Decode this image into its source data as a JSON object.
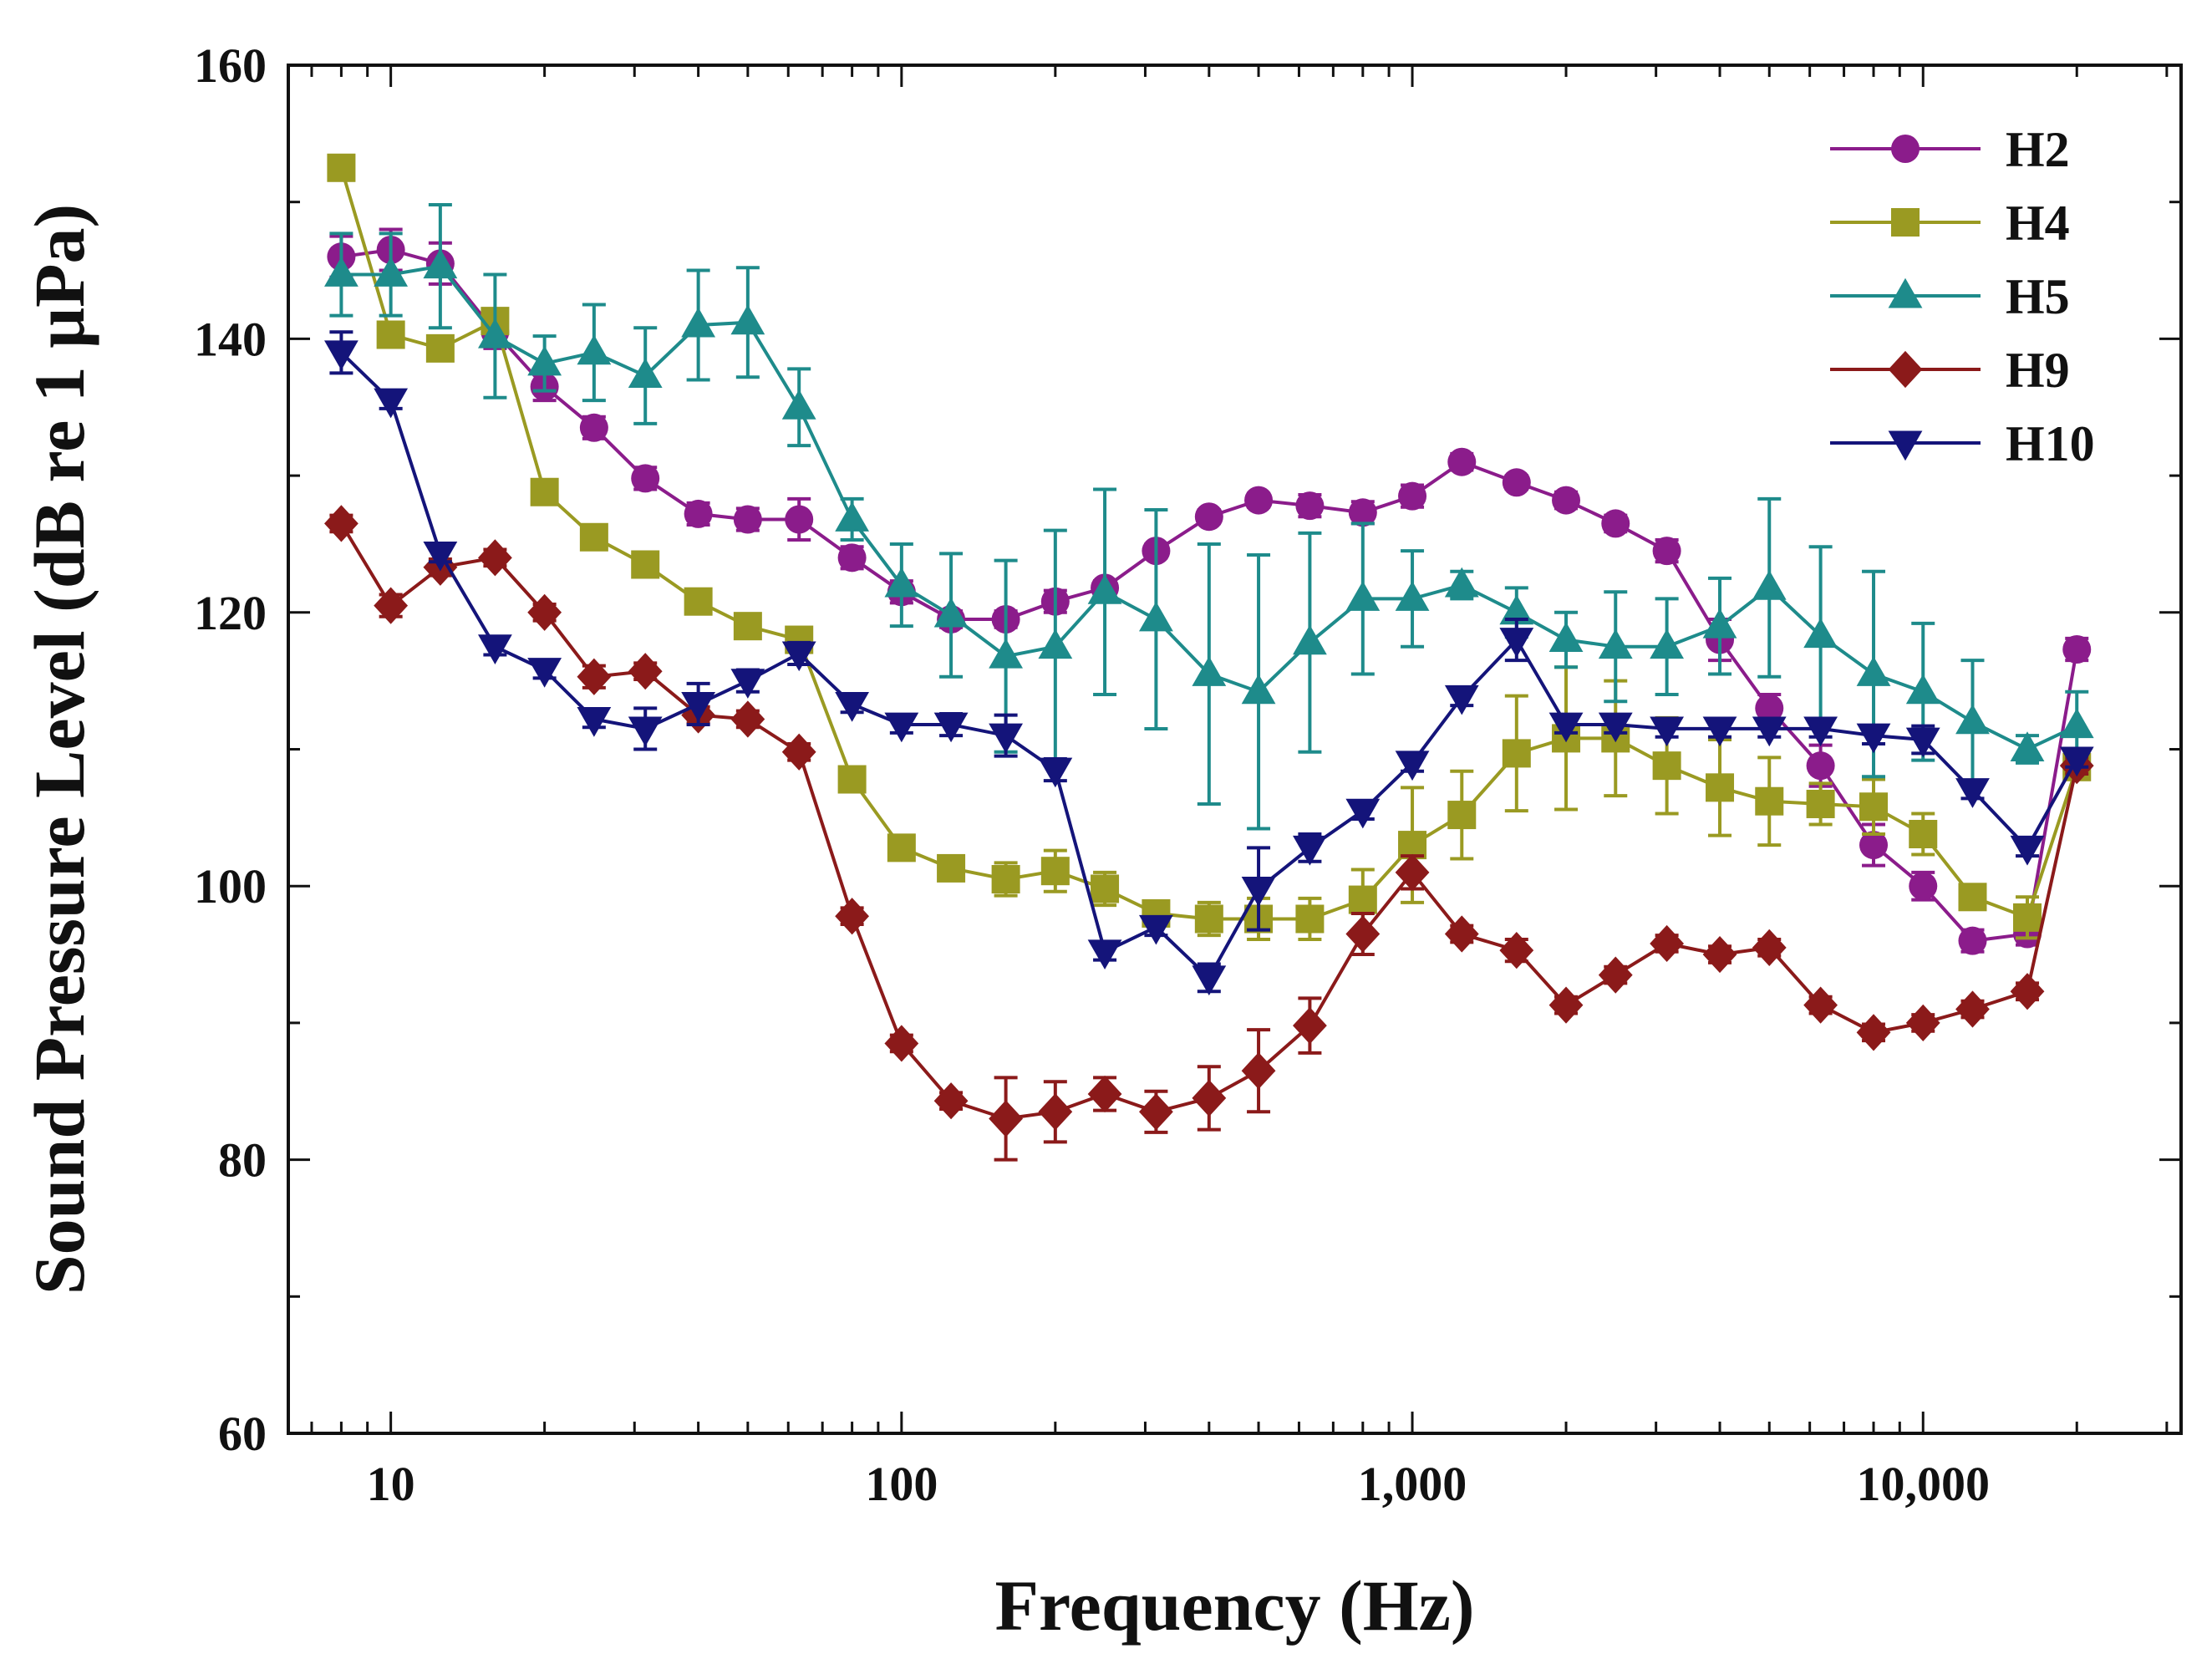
{
  "chart_data": {
    "type": "line",
    "title": "",
    "xlabel": "Frequency (Hz)",
    "ylabel": "Sound Pressure Level (dB re 1 μPa)",
    "xscale": "log",
    "xlim": [
      6.3,
      32000
    ],
    "ylim": [
      60,
      160
    ],
    "yticks": [
      60,
      80,
      100,
      120,
      140,
      160
    ],
    "ytick_labels": [
      "60",
      "80",
      "100",
      "120",
      "140",
      "160"
    ],
    "xticks": [
      10,
      100,
      1000,
      10000
    ],
    "xtick_labels": [
      "10",
      "100",
      "1,000",
      "10,000"
    ],
    "legend_position": "top-right",
    "x": [
      8,
      10,
      12.5,
      16,
      20,
      25,
      31.5,
      40,
      50,
      63,
      80,
      100,
      125,
      160,
      200,
      250,
      315,
      400,
      500,
      630,
      800,
      1000,
      1250,
      1600,
      2000,
      2500,
      3150,
      4000,
      5000,
      6300,
      8000,
      10000,
      12500,
      16000,
      20000
    ],
    "series": [
      {
        "name": "H2",
        "color": "#8B1C8B",
        "marker": "circle",
        "values": [
          146,
          146.5,
          145.5,
          140.5,
          136.5,
          133.5,
          129.8,
          127.2,
          126.8,
          126.8,
          124,
          121.5,
          119.5,
          119.5,
          120.8,
          121.8,
          124.5,
          127,
          128.2,
          127.8,
          127.3,
          128.5,
          131,
          129.5,
          128.2,
          126.5,
          124.5,
          118,
          113,
          108.8,
          103,
          100,
          96,
          96.5,
          117.3
        ],
        "errors": [
          1.5,
          1.5,
          1.5,
          1.2,
          1.0,
          0.8,
          0.8,
          0.8,
          0.8,
          1.5,
          0.8,
          0.8,
          0.6,
          0.6,
          0.8,
          0.5,
          0.5,
          0.5,
          0.5,
          0.8,
          0.8,
          0.8,
          0.6,
          0.5,
          0.6,
          0.6,
          0.8,
          1.5,
          1.0,
          1.5,
          1.5,
          1.0,
          0.8,
          0.8,
          0.8
        ]
      },
      {
        "name": "H4",
        "color": "#9A9A22",
        "marker": "square",
        "values": [
          152.5,
          140.3,
          139.3,
          141.3,
          128.8,
          125.5,
          123.5,
          120.8,
          119,
          118,
          107.8,
          102.8,
          101.3,
          100.5,
          101.1,
          99.8,
          98,
          97.6,
          97.6,
          97.6,
          99,
          103,
          105.2,
          109.7,
          110.8,
          110.8,
          108.8,
          107.2,
          106.2,
          106,
          105.8,
          103.8,
          99.2,
          97.7,
          108.7
        ],
        "errors": [
          0.5,
          0.6,
          0.6,
          0.8,
          0.6,
          0.6,
          0.6,
          0.6,
          0.6,
          0.6,
          0.6,
          0.6,
          0.8,
          1.2,
          1.5,
          1.2,
          0.8,
          1.2,
          1.5,
          1.5,
          2.2,
          4.2,
          3.2,
          4.2,
          5.2,
          4.2,
          3.5,
          3.5,
          3.2,
          1.5,
          2.0,
          1.5,
          0.8,
          1.5,
          0.8
        ]
      },
      {
        "name": "H5",
        "color": "#1E8B8B",
        "marker": "triangle-up",
        "values": [
          144.7,
          144.7,
          145.3,
          140.2,
          138.2,
          139,
          137.3,
          141,
          141.2,
          135,
          126.8,
          122,
          119.8,
          116.8,
          117.5,
          121.5,
          119.5,
          115.5,
          114.2,
          117.8,
          121,
          121,
          122,
          120,
          118,
          117.5,
          117.5,
          119,
          121.8,
          118.3,
          115.5,
          114.2,
          112,
          110,
          111.7
        ],
        "errors": [
          3.0,
          3.0,
          4.5,
          4.5,
          2.0,
          3.5,
          3.5,
          4.0,
          4.0,
          2.8,
          1.5,
          3.0,
          4.5,
          7.0,
          8.5,
          7.5,
          8.0,
          9.5,
          10.0,
          8.0,
          5.5,
          3.5,
          1.0,
          1.8,
          2.0,
          4.0,
          3.5,
          3.5,
          6.5,
          6.5,
          7.5,
          5.0,
          4.5,
          1.0,
          2.5
        ]
      },
      {
        "name": "H9",
        "color": "#8B1A1A",
        "marker": "diamond",
        "values": [
          126.5,
          120.5,
          123.3,
          124,
          120,
          115.3,
          115.7,
          112.5,
          112.2,
          109.8,
          97.8,
          88.5,
          84.3,
          83,
          83.5,
          84.8,
          83.5,
          84.5,
          86.5,
          89.8,
          96.5,
          101,
          96.5,
          95.3,
          91.3,
          93.5,
          95.8,
          95,
          95.5,
          91.3,
          89.3,
          90,
          91,
          92.3,
          108.8
        ],
        "errors": [
          0.6,
          0.8,
          0.6,
          0.6,
          0.6,
          0.8,
          0.6,
          0.6,
          0.6,
          0.6,
          0.6,
          0.6,
          0.6,
          3.0,
          2.2,
          1.2,
          1.5,
          2.3,
          3.0,
          2.0,
          1.5,
          1.2,
          0.6,
          0.8,
          0.6,
          0.6,
          0.6,
          0.6,
          0.6,
          0.6,
          0.6,
          0.6,
          0.6,
          0.6,
          0.6
        ]
      },
      {
        "name": "H10",
        "color": "#14147A",
        "marker": "triangle-down",
        "values": [
          139,
          135.5,
          124.3,
          117.5,
          115.8,
          112.2,
          111.5,
          113.3,
          115,
          117,
          113.3,
          111.8,
          111.8,
          111,
          108.5,
          95.2,
          97,
          93.3,
          99.8,
          102.8,
          105.5,
          109,
          113.8,
          118,
          111.8,
          111.8,
          111.5,
          111.5,
          111.5,
          111.5,
          111,
          110.7,
          107,
          102.8,
          109.3
        ],
        "errors": [
          1.5,
          0.6,
          0.6,
          0.6,
          0.6,
          0.6,
          1.5,
          1.5,
          0.8,
          0.8,
          0.6,
          0.6,
          0.8,
          1.5,
          0.8,
          0.6,
          0.6,
          1.0,
          3.0,
          1.0,
          0.6,
          0.6,
          0.6,
          1.5,
          0.6,
          0.6,
          0.6,
          0.6,
          0.6,
          0.6,
          0.6,
          1.0,
          0.6,
          0.6,
          0.6
        ]
      }
    ]
  }
}
